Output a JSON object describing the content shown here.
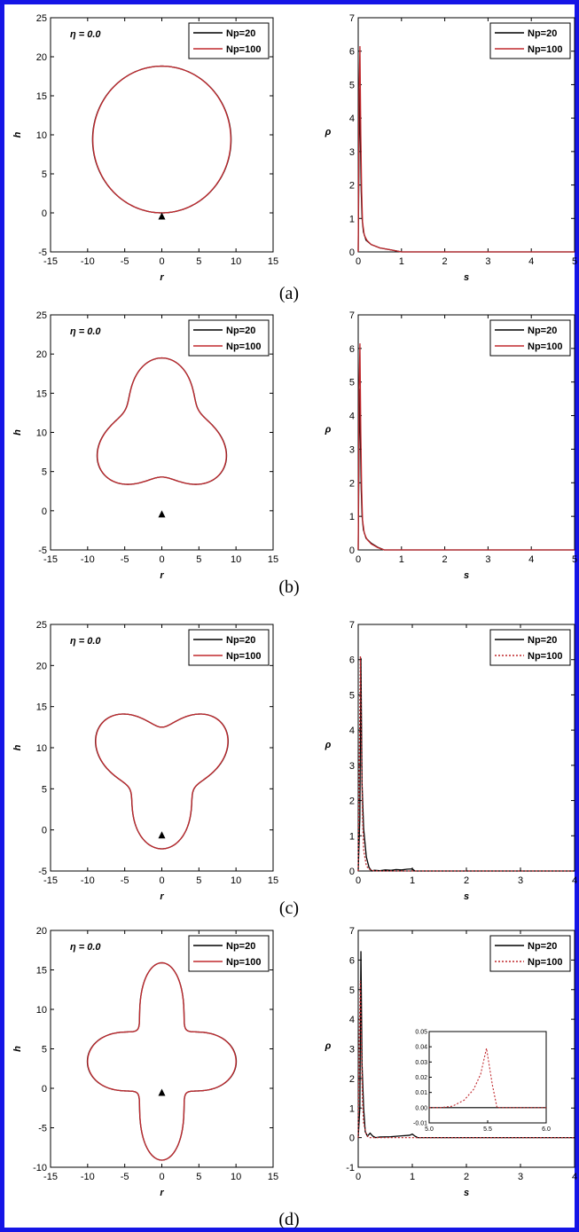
{
  "colors": {
    "frame": "#1515e6",
    "np20": "#000000",
    "np100": "#c0282d"
  },
  "panels": [
    {
      "label": "(a)",
      "eta": "η = 0.0"
    },
    {
      "label": "(b)",
      "eta": "η = 0.0"
    },
    {
      "label": "(c)",
      "eta": "η = 0.0"
    },
    {
      "label": "(d)",
      "eta": "η = 0.0"
    }
  ],
  "chart_data": [
    {
      "type": "line",
      "panel": "a-left",
      "xlabel": "r",
      "ylabel": "h",
      "xlim": [
        -15,
        15
      ],
      "ylim": [
        -5,
        25
      ],
      "xticks": [
        -15,
        -10,
        -5,
        0,
        5,
        10,
        15
      ],
      "yticks": [
        -5,
        0,
        5,
        10,
        15,
        20,
        25
      ],
      "legend": {
        "position": "top-right",
        "entries": [
          "Np=20",
          "Np=100"
        ]
      },
      "shape": {
        "kind": "circle",
        "cx": 0,
        "cy": 9.4,
        "rx": 9.3,
        "ry": 9.4
      },
      "marker": {
        "x": 0,
        "y": -0.4
      },
      "series": [
        {
          "name": "Np=20",
          "color": "#000000",
          "dash": false
        },
        {
          "name": "Np=100",
          "color": "#c0282d",
          "dash": false
        }
      ]
    },
    {
      "type": "line",
      "panel": "a-right",
      "xlabel": "s",
      "ylabel": "ρ",
      "xlim": [
        0,
        5
      ],
      "ylim": [
        0,
        7
      ],
      "xticks": [
        0,
        1,
        2,
        3,
        4,
        5
      ],
      "yticks": [
        0,
        1,
        2,
        3,
        4,
        5,
        6,
        7
      ],
      "legend": {
        "position": "top-right",
        "entries": [
          "Np=20",
          "Np=100"
        ]
      },
      "series": [
        {
          "name": "Np=20",
          "color": "#000000",
          "dash": false,
          "x": [
            0,
            0.03,
            0.05,
            0.07,
            0.09,
            0.12,
            0.18,
            0.3,
            0.5,
            0.8,
            1.0,
            5
          ],
          "y": [
            0,
            4.9,
            3.4,
            1.8,
            1.0,
            0.6,
            0.35,
            0.22,
            0.12,
            0.05,
            0.0,
            0.0
          ]
        },
        {
          "name": "Np=100",
          "color": "#c0282d",
          "dash": false,
          "x": [
            0,
            0.02,
            0.04,
            0.06,
            0.08,
            0.1,
            0.14,
            0.2,
            0.3,
            0.5,
            0.8,
            1.0,
            5
          ],
          "y": [
            0,
            4.8,
            6.15,
            3.5,
            1.8,
            0.9,
            0.5,
            0.35,
            0.22,
            0.12,
            0.05,
            0.0,
            0.0
          ]
        }
      ]
    },
    {
      "type": "line",
      "panel": "b-left",
      "xlabel": "r",
      "ylabel": "h",
      "xlim": [
        -15,
        15
      ],
      "ylim": [
        -5,
        25
      ],
      "xticks": [
        -15,
        -10,
        -5,
        0,
        5,
        10,
        15
      ],
      "yticks": [
        -5,
        0,
        5,
        10,
        15,
        20,
        25
      ],
      "legend": {
        "position": "top-right",
        "entries": [
          "Np=20",
          "Np=100"
        ]
      },
      "shape": {
        "kind": "trilobe",
        "cx": 0,
        "cy": 10,
        "a": 7.6,
        "b": 1.9,
        "phase": 1.5708,
        "n": 3
      },
      "marker": {
        "x": 0,
        "y": -0.4
      },
      "series": [
        {
          "name": "Np=20",
          "color": "#000000",
          "dash": false
        },
        {
          "name": "Np=100",
          "color": "#c0282d",
          "dash": false
        }
      ]
    },
    {
      "type": "line",
      "panel": "b-right",
      "xlabel": "s",
      "ylabel": "ρ",
      "xlim": [
        0,
        5
      ],
      "ylim": [
        0,
        7
      ],
      "xticks": [
        0,
        1,
        2,
        3,
        4,
        5
      ],
      "yticks": [
        0,
        1,
        2,
        3,
        4,
        5,
        6,
        7
      ],
      "legend": {
        "position": "top-right",
        "entries": [
          "Np=20",
          "Np=100"
        ]
      },
      "series": [
        {
          "name": "Np=20",
          "color": "#000000",
          "dash": false,
          "x": [
            0,
            0.03,
            0.05,
            0.07,
            0.09,
            0.12,
            0.18,
            0.3,
            0.45,
            0.6,
            5
          ],
          "y": [
            0,
            4.8,
            3.4,
            1.8,
            1.0,
            0.6,
            0.35,
            0.2,
            0.08,
            0.0,
            0.0
          ]
        },
        {
          "name": "Np=100",
          "color": "#c0282d",
          "dash": false,
          "x": [
            0,
            0.02,
            0.04,
            0.06,
            0.08,
            0.1,
            0.14,
            0.2,
            0.3,
            0.45,
            0.6,
            5
          ],
          "y": [
            0,
            4.8,
            6.15,
            3.5,
            1.8,
            0.9,
            0.5,
            0.32,
            0.18,
            0.07,
            0.0,
            0.0
          ]
        }
      ]
    },
    {
      "type": "line",
      "panel": "c-left",
      "xlabel": "r",
      "ylabel": "h",
      "xlim": [
        -15,
        15
      ],
      "ylim": [
        -5,
        25
      ],
      "xticks": [
        -15,
        -10,
        -5,
        0,
        5,
        10,
        15
      ],
      "yticks": [
        -5,
        0,
        5,
        10,
        15,
        20,
        25
      ],
      "legend": {
        "position": "top-right",
        "entries": [
          "Np=20",
          "Np=100"
        ]
      },
      "shape": {
        "kind": "trilobe",
        "cx": 0,
        "cy": 7.5,
        "a": 7.4,
        "b": 2.4,
        "phase": -1.5708,
        "n": 3
      },
      "marker": {
        "x": 0,
        "y": -0.6
      },
      "series": [
        {
          "name": "Np=20",
          "color": "#000000",
          "dash": false
        },
        {
          "name": "Np=100",
          "color": "#c0282d",
          "dash": false
        }
      ]
    },
    {
      "type": "line",
      "panel": "c-right",
      "xlabel": "s",
      "ylabel": "ρ",
      "xlim": [
        0,
        4
      ],
      "ylim": [
        0,
        7
      ],
      "xticks": [
        0,
        1,
        2,
        3,
        4
      ],
      "yticks": [
        0,
        1,
        2,
        3,
        4,
        5,
        6,
        7
      ],
      "legend": {
        "position": "top-right",
        "entries": [
          "Np=20",
          "Np=100"
        ]
      },
      "series": [
        {
          "name": "Np=20",
          "color": "#000000",
          "dash": false,
          "x": [
            0,
            0.03,
            0.05,
            0.07,
            0.1,
            0.15,
            0.2,
            0.25,
            0.3,
            0.4,
            0.5,
            0.6,
            0.7,
            0.8,
            0.9,
            1.0,
            1.05,
            4
          ],
          "y": [
            0,
            1.5,
            6.05,
            2.5,
            1.2,
            0.4,
            0.1,
            0.0,
            0.02,
            0.01,
            0.03,
            0.02,
            0.04,
            0.03,
            0.05,
            0.06,
            0.0,
            0.0
          ]
        },
        {
          "name": "Np=100",
          "color": "#c0282d",
          "dash": true,
          "x": [
            0,
            0.02,
            0.04,
            0.06,
            0.08,
            0.1,
            0.15,
            0.2,
            0.3,
            4
          ],
          "y": [
            0,
            3.0,
            6.1,
            3.5,
            1.5,
            0.6,
            0.15,
            0.05,
            0.0,
            0.0
          ]
        }
      ]
    },
    {
      "type": "line",
      "panel": "d-left",
      "xlabel": "r",
      "ylabel": "h",
      "xlim": [
        -15,
        15
      ],
      "ylim": [
        -10,
        20
      ],
      "xticks": [
        -15,
        -10,
        -5,
        0,
        5,
        10,
        15
      ],
      "yticks": [
        -10,
        -5,
        0,
        5,
        10,
        15,
        20
      ],
      "legend": {
        "position": "top-right",
        "entries": [
          "Np=20",
          "Np=100"
        ]
      },
      "shape": {
        "kind": "fourlobe",
        "cx": 0,
        "cy": 3.4,
        "a": 7.3,
        "b": 2.7,
        "n": 4
      },
      "marker": {
        "x": 0,
        "y": -0.5
      },
      "series": [
        {
          "name": "Np=20",
          "color": "#000000",
          "dash": false
        },
        {
          "name": "Np=100",
          "color": "#c0282d",
          "dash": false
        }
      ]
    },
    {
      "type": "line",
      "panel": "d-right",
      "xlabel": "s",
      "ylabel": "ρ",
      "xlim": [
        0,
        4
      ],
      "ylim": [
        -1,
        7
      ],
      "xticks": [
        0,
        1,
        2,
        3,
        4
      ],
      "yticks": [
        -1,
        0,
        1,
        2,
        3,
        4,
        5,
        6,
        7
      ],
      "legend": {
        "position": "top-right",
        "entries": [
          "Np=20",
          "Np=100"
        ]
      },
      "series": [
        {
          "name": "Np=20",
          "color": "#000000",
          "dash": false,
          "x": [
            0,
            0.03,
            0.05,
            0.07,
            0.1,
            0.13,
            0.17,
            0.22,
            0.27,
            0.32,
            0.4,
            0.6,
            0.8,
            0.95,
            1.0,
            1.05,
            1.1,
            4
          ],
          "y": [
            0,
            1.0,
            6.3,
            2.5,
            1.0,
            0.2,
            0.05,
            0.15,
            0.05,
            0.0,
            0.02,
            0.03,
            0.06,
            0.08,
            0.12,
            0.05,
            0.0,
            0.0
          ]
        },
        {
          "name": "Np=100",
          "color": "#c0282d",
          "dash": true,
          "x": [
            0,
            0.02,
            0.04,
            0.06,
            0.08,
            0.1,
            0.15,
            0.2,
            4
          ],
          "y": [
            0,
            3.5,
            5.3,
            3.0,
            1.2,
            0.5,
            0.1,
            0.0,
            0.0
          ]
        }
      ],
      "inset": {
        "xlim": [
          5.0,
          6.0
        ],
        "ylim": [
          -0.01,
          0.05
        ],
        "xticks": [
          "5.0",
          "5.5",
          "6.0"
        ],
        "yticks": [
          "-0.01",
          "0.00",
          "0.01",
          "0.02",
          "0.03",
          "0.04",
          "0.05"
        ],
        "series": [
          {
            "name": "Np=20",
            "color": "#000000",
            "dash": false,
            "x": [
              5.0,
              6.0
            ],
            "y": [
              0.0,
              0.0
            ]
          },
          {
            "name": "Np=100",
            "color": "#c0282d",
            "dash": true,
            "x": [
              5.0,
              5.1,
              5.2,
              5.3,
              5.38,
              5.44,
              5.49,
              5.54,
              5.58,
              6.0
            ],
            "y": [
              0.0,
              0.0,
              0.001,
              0.005,
              0.012,
              0.022,
              0.039,
              0.015,
              0.0,
              0.0
            ]
          }
        ]
      }
    }
  ]
}
